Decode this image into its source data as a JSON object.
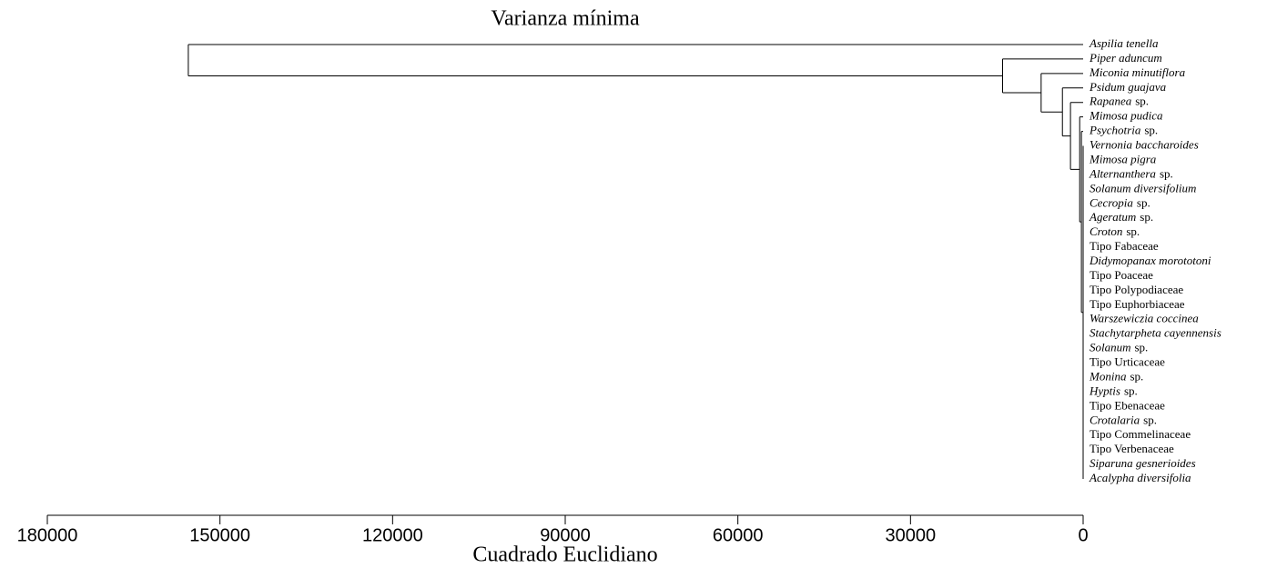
{
  "chart_data": {
    "type": "dendrogram",
    "title": "Varianza mínima",
    "xlabel": "Cuadrado Euclidiano",
    "xlim": [
      180000,
      0
    ],
    "xticks": [
      180000,
      150000,
      120000,
      90000,
      60000,
      30000,
      0
    ],
    "color": "#000000",
    "leaves": [
      [
        {
          "text": "Aspilia tenella",
          "italic": true
        }
      ],
      [
        {
          "text": "Piper aduncum",
          "italic": true
        }
      ],
      [
        {
          "text": "Miconia minutiflora",
          "italic": true
        }
      ],
      [
        {
          "text": "Psidum guajava",
          "italic": true
        }
      ],
      [
        {
          "text": "Rapanea",
          "italic": true
        },
        {
          "text": "sp."
        }
      ],
      [
        {
          "text": "Mimosa pudica",
          "italic": true
        }
      ],
      [
        {
          "text": "Psychotria",
          "italic": true
        },
        {
          "text": "sp."
        }
      ],
      [
        {
          "text": "Vernonia baccharoides",
          "italic": true
        }
      ],
      [
        {
          "text": "Mimosa pigra",
          "italic": true
        }
      ],
      [
        {
          "text": "Alternanthera",
          "italic": true
        },
        {
          "text": "sp."
        }
      ],
      [
        {
          "text": "Solanum diversifolium",
          "italic": true
        }
      ],
      [
        {
          "text": "Cecropia",
          "italic": true
        },
        {
          "text": "sp."
        }
      ],
      [
        {
          "text": "Ageratum",
          "italic": true
        },
        {
          "text": "sp."
        }
      ],
      [
        {
          "text": "Croton",
          "italic": true
        },
        {
          "text": "sp."
        }
      ],
      [
        {
          "text": "Tipo Fabaceae"
        }
      ],
      [
        {
          "text": "Didymopanax morototoni",
          "italic": true
        }
      ],
      [
        {
          "text": "Tipo Poaceae"
        }
      ],
      [
        {
          "text": "Tipo Polypodiaceae"
        }
      ],
      [
        {
          "text": "Tipo Euphorbiaceae"
        }
      ],
      [
        {
          "text": "Warszewiczia coccinea",
          "italic": true
        }
      ],
      [
        {
          "text": "Stachytarpheta cayennensis",
          "italic": true
        }
      ],
      [
        {
          "text": "Solanum",
          "italic": true
        },
        {
          "text": "sp."
        }
      ],
      [
        {
          "text": "Tipo Urticaceae"
        }
      ],
      [
        {
          "text": "Monina",
          "italic": true
        },
        {
          "text": "sp."
        }
      ],
      [
        {
          "text": "Hyptis",
          "italic": true
        },
        {
          "text": "sp."
        }
      ],
      [
        {
          "text": "Tipo Ebenaceae"
        }
      ],
      [
        {
          "text": "Crotalaria",
          "italic": true
        },
        {
          "text": "sp."
        }
      ],
      [
        {
          "text": "Tipo Commelinaceae"
        }
      ],
      [
        {
          "text": "Tipo Verbenaceae"
        }
      ],
      [
        {
          "text": "Siparuna gesnerioides",
          "italic": true
        }
      ],
      [
        {
          "text": "Acalypha diversifolia",
          "italic": true
        }
      ]
    ],
    "merges": [
      {
        "children": [
          7,
          8,
          9,
          10,
          11,
          12,
          13,
          14,
          15,
          16,
          17,
          18,
          19,
          20,
          21,
          22,
          23,
          24,
          25,
          26,
          27,
          28,
          29,
          30
        ],
        "height": 0
      },
      {
        "children": [
          6,
          31
        ],
        "height": 300
      },
      {
        "children": [
          5,
          32
        ],
        "height": 600
      },
      {
        "children": [
          4,
          33
        ],
        "height": 2200
      },
      {
        "children": [
          3,
          34
        ],
        "height": 3600
      },
      {
        "children": [
          2,
          35
        ],
        "height": 7300
      },
      {
        "children": [
          1,
          36
        ],
        "height": 14000
      },
      {
        "children": [
          0,
          37
        ],
        "height": 155500
      }
    ]
  }
}
